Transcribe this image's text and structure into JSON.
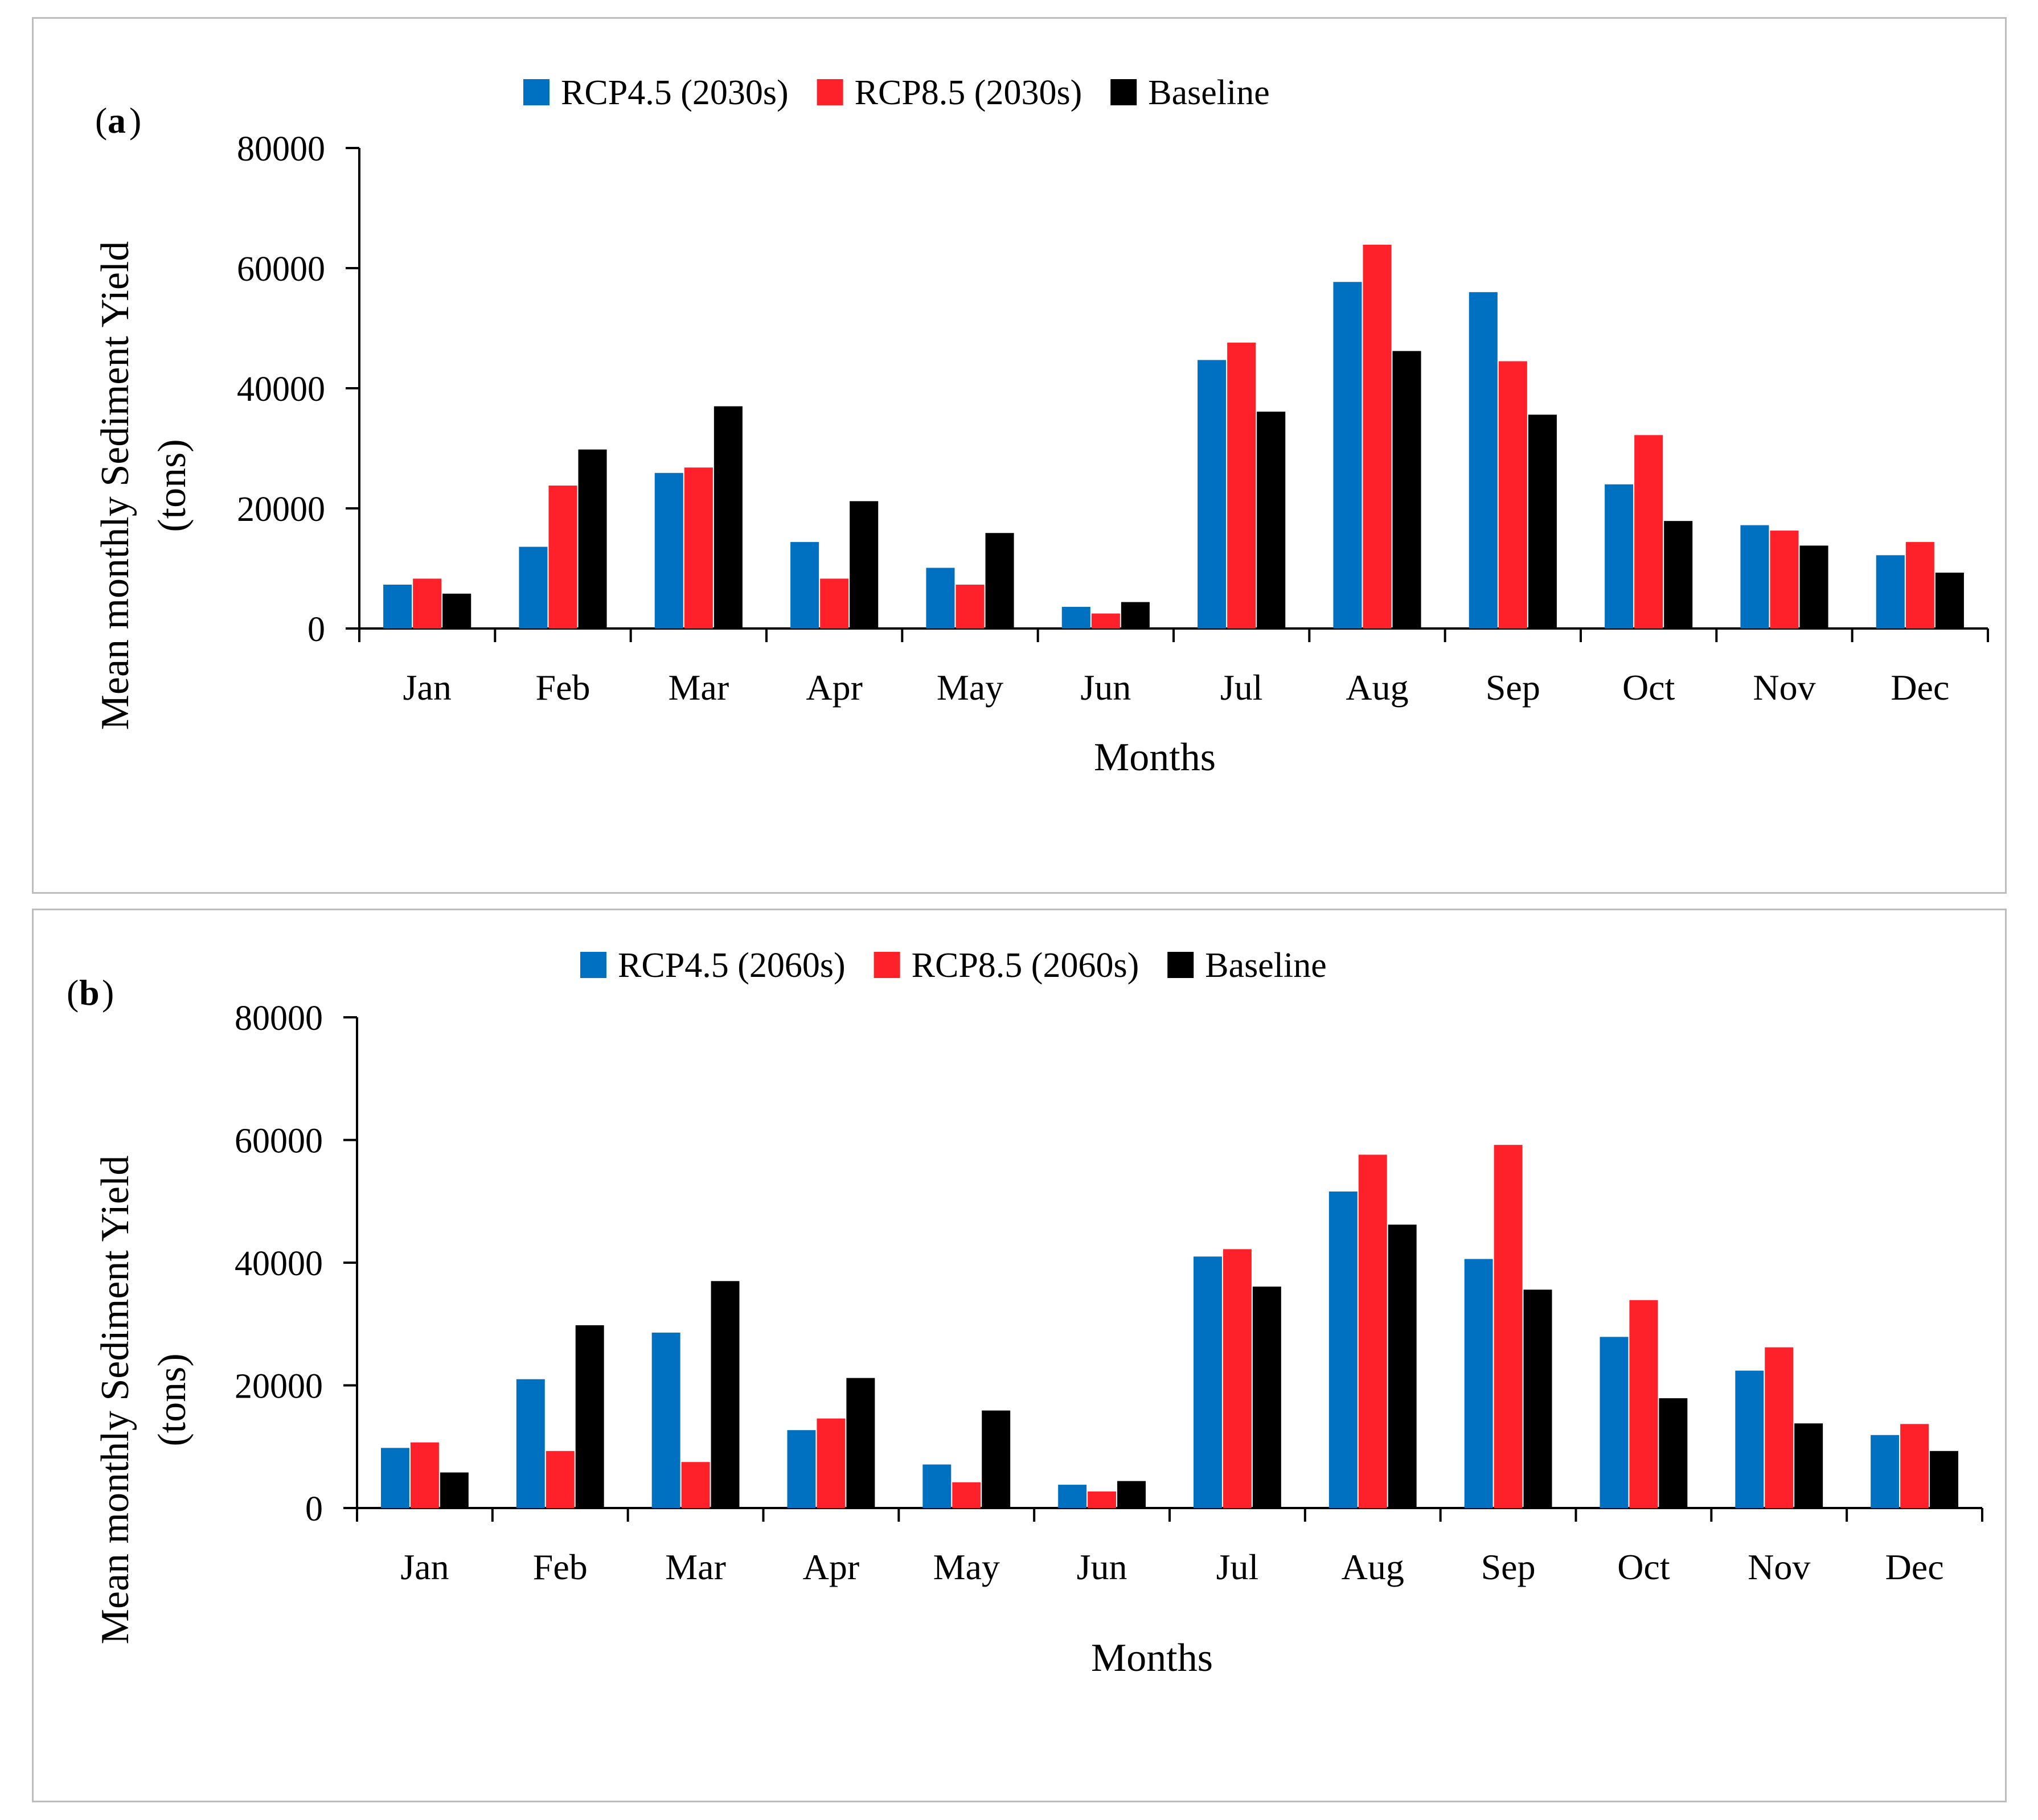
{
  "colors": {
    "rcp45": "#0070C0",
    "rcp85": "#FF2129",
    "baseline": "#000000",
    "axis": "#000000",
    "frame": "#bdbdbd"
  },
  "chart_data": [
    {
      "type": "bar",
      "panel_label_letter": "a",
      "categories": [
        "Jan",
        "Feb",
        "Mar",
        "Apr",
        "May",
        "Jun",
        "Jul",
        "Aug",
        "Sep",
        "Oct",
        "Nov",
        "Dec"
      ],
      "series": [
        {
          "name": "RCP4.5 (2030s)",
          "key": "rcp45",
          "values": [
            7300,
            13600,
            25900,
            14400,
            10100,
            3600,
            44700,
            57700,
            56000,
            24000,
            17200,
            12200
          ]
        },
        {
          "name": "RCP8.5 (2030s)",
          "key": "rcp85",
          "values": [
            8300,
            23800,
            26800,
            8300,
            7300,
            2500,
            47600,
            63900,
            44500,
            32200,
            16300,
            14400
          ]
        },
        {
          "name": "Baseline",
          "key": "baseline",
          "values": [
            5800,
            29800,
            37000,
            21200,
            15900,
            4400,
            36100,
            46200,
            35600,
            17900,
            13800,
            9300
          ]
        }
      ],
      "yticks": [
        "0",
        "20000",
        "40000",
        "60000",
        "80000"
      ],
      "ylim": [
        0,
        80000
      ],
      "xlabel": "Months",
      "ylabel_line1": "Mean monthly Sediment Yield",
      "ylabel_line2": "(tons)",
      "legend_position": "top-center",
      "grid": false
    },
    {
      "type": "bar",
      "panel_label_letter": "b",
      "categories": [
        "Jan",
        "Feb",
        "Mar",
        "Apr",
        "May",
        "Jun",
        "Jul",
        "Aug",
        "Sep",
        "Oct",
        "Nov",
        "Dec"
      ],
      "series": [
        {
          "name": "RCP4.5 (2060s)",
          "key": "rcp45",
          "values": [
            9800,
            21000,
            28600,
            12700,
            7100,
            3800,
            41000,
            51600,
            40600,
            27900,
            22400,
            11900
          ]
        },
        {
          "name": "RCP8.5 (2060s)",
          "key": "rcp85",
          "values": [
            10700,
            9300,
            7500,
            14600,
            4200,
            2700,
            42200,
            57600,
            59200,
            33900,
            26200,
            13700
          ]
        },
        {
          "name": "Baseline",
          "key": "baseline",
          "values": [
            5800,
            29800,
            37000,
            21200,
            15900,
            4400,
            36100,
            46200,
            35600,
            17900,
            13800,
            9300
          ]
        }
      ],
      "yticks": [
        "0",
        "20000",
        "40000",
        "60000",
        "80000"
      ],
      "ylim": [
        0,
        80000
      ],
      "xlabel": "Months",
      "ylabel_line1": "Mean monthly Sediment Yield",
      "ylabel_line2": "(tons)",
      "legend_position": "top-center",
      "grid": false
    }
  ]
}
